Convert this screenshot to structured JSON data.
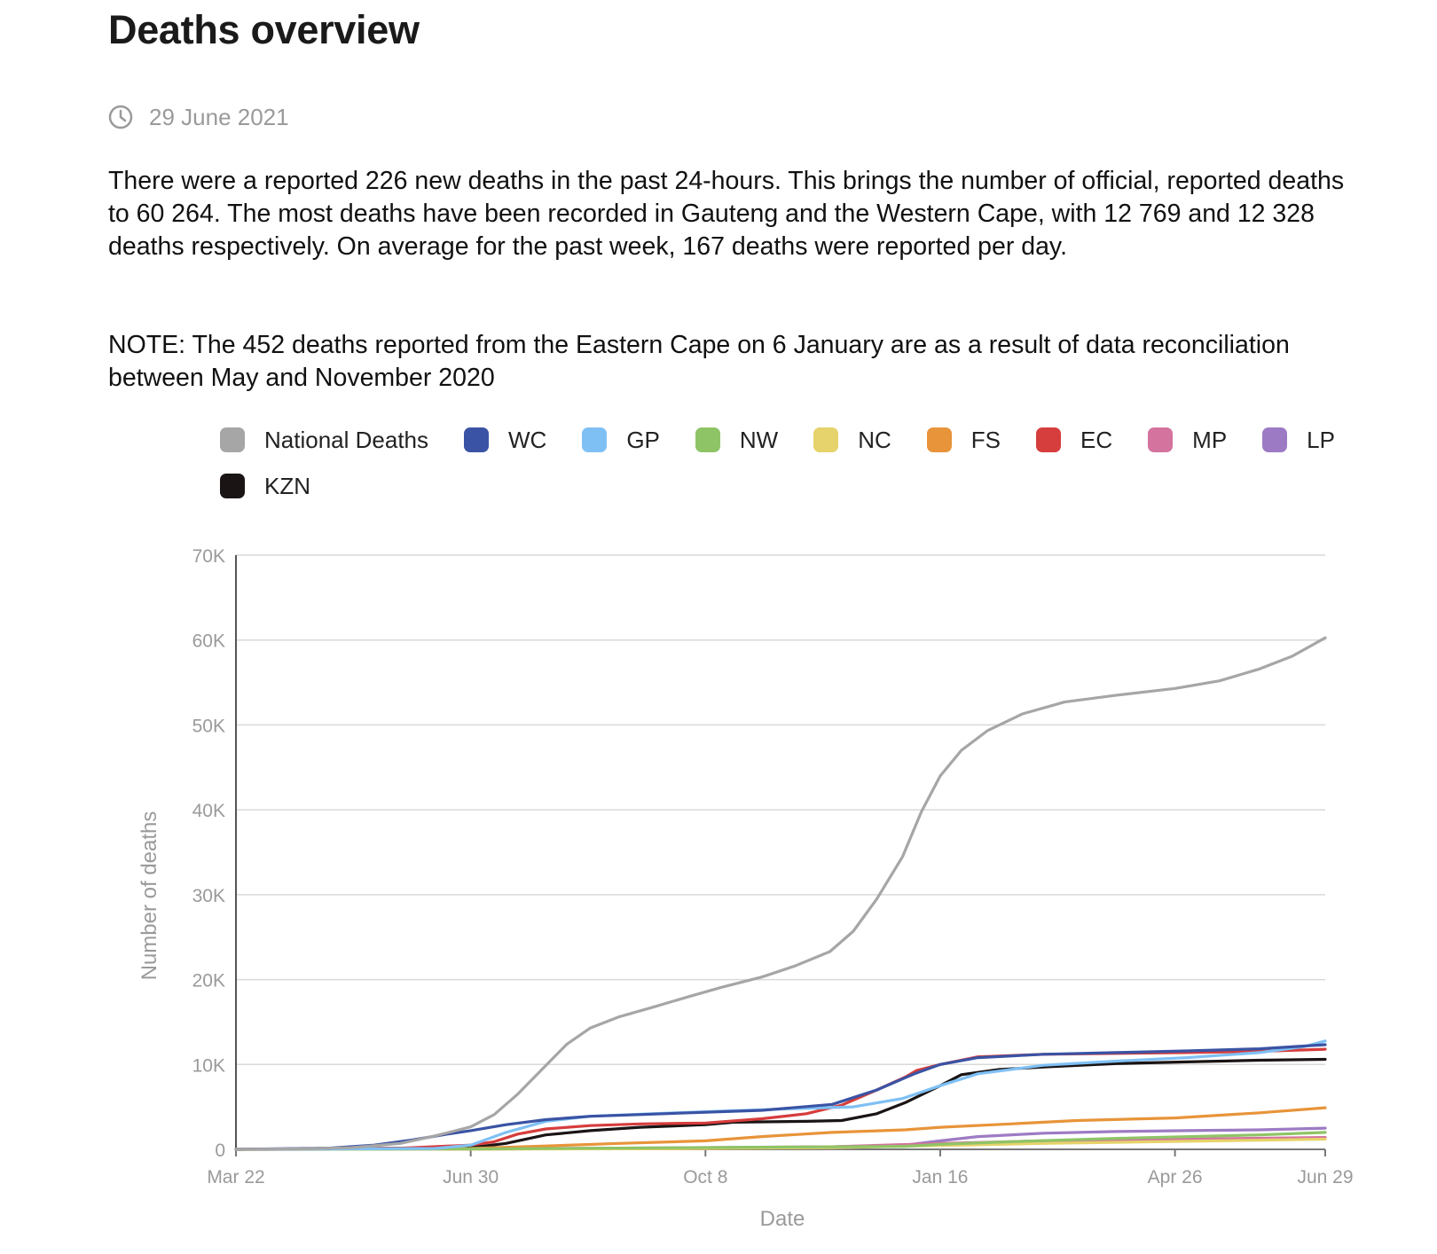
{
  "page": {
    "title": "Deaths overview",
    "date": "29 June 2021",
    "paragraph1": "There were a reported 226 new deaths in the past 24-hours. This brings the number of official, reported deaths to 60 264. The most deaths have been recorded in Gauteng and the Western Cape, with 12 769 and 12 328 deaths respectively. On average for the past week, 167 deaths were reported per day.",
    "paragraph2": "NOTE: The 452 deaths reported from the Eastern Cape on 6 January are as a result of data reconciliation between May and November 2020"
  },
  "icons": {
    "date": "clock-icon"
  },
  "chart_data": {
    "type": "line",
    "xlabel": "Date",
    "ylabel": "Number of deaths",
    "ylim": [
      0,
      70000
    ],
    "y_ticks": [
      0,
      10000,
      20000,
      30000,
      40000,
      50000,
      60000,
      70000
    ],
    "y_tick_labels": [
      "0",
      "10K",
      "20K",
      "30K",
      "40K",
      "50K",
      "60K",
      "70K"
    ],
    "x_tick_labels": [
      "Mar 22",
      "Jun 30",
      "Oct 8",
      "Jan 16",
      "Apr 26",
      "Jun 29"
    ],
    "x_tick_dates": [
      "2020-03-22",
      "2020-06-30",
      "2020-10-08",
      "2021-01-16",
      "2021-04-26",
      "2021-06-29"
    ],
    "xlim": [
      "2020-03-22",
      "2021-06-29"
    ],
    "grid": true,
    "legend_position": "top",
    "series": [
      {
        "name": "National Deaths",
        "color": "#a6a6a6",
        "points": [
          [
            "2020-03-22",
            0
          ],
          [
            "2020-04-20",
            60
          ],
          [
            "2020-05-10",
            200
          ],
          [
            "2020-05-31",
            700
          ],
          [
            "2020-06-15",
            1600
          ],
          [
            "2020-06-30",
            2650
          ],
          [
            "2020-07-10",
            4100
          ],
          [
            "2020-07-20",
            6500
          ],
          [
            "2020-07-31",
            9600
          ],
          [
            "2020-08-10",
            12400
          ],
          [
            "2020-08-20",
            14300
          ],
          [
            "2020-09-01",
            15600
          ],
          [
            "2020-09-15",
            16700
          ],
          [
            "2020-10-01",
            18000
          ],
          [
            "2020-10-15",
            19100
          ],
          [
            "2020-11-01",
            20300
          ],
          [
            "2020-11-15",
            21600
          ],
          [
            "2020-11-30",
            23300
          ],
          [
            "2020-12-10",
            25700
          ],
          [
            "2020-12-20",
            29500
          ],
          [
            "2020-12-31",
            34500
          ],
          [
            "2021-01-08",
            39800
          ],
          [
            "2021-01-16",
            44000
          ],
          [
            "2021-01-25",
            47000
          ],
          [
            "2021-02-05",
            49300
          ],
          [
            "2021-02-20",
            51300
          ],
          [
            "2021-03-10",
            52700
          ],
          [
            "2021-04-01",
            53500
          ],
          [
            "2021-04-26",
            54300
          ],
          [
            "2021-05-15",
            55200
          ],
          [
            "2021-06-01",
            56600
          ],
          [
            "2021-06-15",
            58100
          ],
          [
            "2021-06-29",
            60264
          ]
        ]
      },
      {
        "name": "WC",
        "color": "#3a53a4",
        "points": [
          [
            "2020-03-22",
            0
          ],
          [
            "2020-05-01",
            150
          ],
          [
            "2020-05-20",
            500
          ],
          [
            "2020-06-05",
            1100
          ],
          [
            "2020-06-20",
            1800
          ],
          [
            "2020-06-30",
            2200
          ],
          [
            "2020-07-15",
            2900
          ],
          [
            "2020-08-01",
            3500
          ],
          [
            "2020-08-20",
            3900
          ],
          [
            "2020-09-10",
            4100
          ],
          [
            "2020-10-01",
            4300
          ],
          [
            "2020-11-01",
            4600
          ],
          [
            "2020-12-01",
            5300
          ],
          [
            "2020-12-20",
            7000
          ],
          [
            "2021-01-05",
            8900
          ],
          [
            "2021-01-16",
            10000
          ],
          [
            "2021-02-01",
            10800
          ],
          [
            "2021-03-01",
            11200
          ],
          [
            "2021-04-01",
            11400
          ],
          [
            "2021-05-01",
            11600
          ],
          [
            "2021-06-01",
            11850
          ],
          [
            "2021-06-29",
            12328
          ]
        ]
      },
      {
        "name": "GP",
        "color": "#7fc0f4",
        "points": [
          [
            "2020-03-22",
            0
          ],
          [
            "2020-06-15",
            100
          ],
          [
            "2020-06-30",
            500
          ],
          [
            "2020-07-15",
            2000
          ],
          [
            "2020-08-01",
            3300
          ],
          [
            "2020-08-20",
            3900
          ],
          [
            "2020-09-15",
            4200
          ],
          [
            "2020-10-15",
            4500
          ],
          [
            "2020-11-15",
            4800
          ],
          [
            "2020-12-10",
            5000
          ],
          [
            "2020-12-31",
            6000
          ],
          [
            "2021-01-16",
            7500
          ],
          [
            "2021-02-01",
            8900
          ],
          [
            "2021-03-01",
            9900
          ],
          [
            "2021-04-01",
            10400
          ],
          [
            "2021-05-01",
            10800
          ],
          [
            "2021-06-01",
            11400
          ],
          [
            "2021-06-20",
            12100
          ],
          [
            "2021-06-29",
            12769
          ]
        ]
      },
      {
        "name": "NW",
        "color": "#8fc466",
        "points": [
          [
            "2020-03-22",
            0
          ],
          [
            "2020-07-01",
            50
          ],
          [
            "2020-09-01",
            150
          ],
          [
            "2020-11-01",
            250
          ],
          [
            "2021-01-01",
            350
          ],
          [
            "2021-01-16",
            600
          ],
          [
            "2021-02-15",
            900
          ],
          [
            "2021-04-01",
            1300
          ],
          [
            "2021-06-01",
            1700
          ],
          [
            "2021-06-29",
            2000
          ]
        ]
      },
      {
        "name": "NC",
        "color": "#e6d36b",
        "points": [
          [
            "2020-03-22",
            0
          ],
          [
            "2020-07-01",
            20
          ],
          [
            "2020-10-01",
            80
          ],
          [
            "2020-12-01",
            200
          ],
          [
            "2021-01-16",
            450
          ],
          [
            "2021-03-01",
            700
          ],
          [
            "2021-05-01",
            950
          ],
          [
            "2021-06-29",
            1200
          ]
        ]
      },
      {
        "name": "FS",
        "color": "#e8943a",
        "points": [
          [
            "2020-03-22",
            0
          ],
          [
            "2020-06-30",
            100
          ],
          [
            "2020-08-01",
            400
          ],
          [
            "2020-09-01",
            700
          ],
          [
            "2020-10-08",
            1000
          ],
          [
            "2020-11-01",
            1500
          ],
          [
            "2020-12-01",
            2000
          ],
          [
            "2021-01-01",
            2300
          ],
          [
            "2021-01-16",
            2600
          ],
          [
            "2021-02-15",
            3000
          ],
          [
            "2021-03-15",
            3400
          ],
          [
            "2021-04-26",
            3700
          ],
          [
            "2021-06-01",
            4300
          ],
          [
            "2021-06-29",
            4900
          ]
        ]
      },
      {
        "name": "EC",
        "color": "#d63d3d",
        "points": [
          [
            "2020-03-22",
            0
          ],
          [
            "2020-06-01",
            150
          ],
          [
            "2020-06-30",
            500
          ],
          [
            "2020-07-10",
            900
          ],
          [
            "2020-07-20",
            1800
          ],
          [
            "2020-08-01",
            2400
          ],
          [
            "2020-08-20",
            2800
          ],
          [
            "2020-09-10",
            3000
          ],
          [
            "2020-10-08",
            3100
          ],
          [
            "2020-11-01",
            3600
          ],
          [
            "2020-11-20",
            4200
          ],
          [
            "2020-12-05",
            5200
          ],
          [
            "2020-12-20",
            7000
          ],
          [
            "2021-01-01",
            8500
          ],
          [
            "2021-01-06",
            9300
          ],
          [
            "2021-01-16",
            10000
          ],
          [
            "2021-02-01",
            10900
          ],
          [
            "2021-03-01",
            11200
          ],
          [
            "2021-04-01",
            11300
          ],
          [
            "2021-05-01",
            11400
          ],
          [
            "2021-06-01",
            11550
          ],
          [
            "2021-06-29",
            11800
          ]
        ]
      },
      {
        "name": "MP",
        "color": "#d4739e",
        "points": [
          [
            "2020-03-22",
            0
          ],
          [
            "2020-07-01",
            30
          ],
          [
            "2020-10-01",
            150
          ],
          [
            "2020-12-01",
            300
          ],
          [
            "2021-01-16",
            700
          ],
          [
            "2021-03-01",
            1000
          ],
          [
            "2021-05-01",
            1200
          ],
          [
            "2021-06-29",
            1400
          ]
        ]
      },
      {
        "name": "LP",
        "color": "#9d7bc4",
        "points": [
          [
            "2020-03-22",
            0
          ],
          [
            "2020-07-01",
            30
          ],
          [
            "2020-10-01",
            200
          ],
          [
            "2020-12-01",
            300
          ],
          [
            "2021-01-01",
            500
          ],
          [
            "2021-01-16",
            1000
          ],
          [
            "2021-02-01",
            1500
          ],
          [
            "2021-03-01",
            1900
          ],
          [
            "2021-04-01",
            2100
          ],
          [
            "2021-05-01",
            2200
          ],
          [
            "2021-06-01",
            2300
          ],
          [
            "2021-06-29",
            2500
          ]
        ]
      },
      {
        "name": "KZN",
        "color": "#1a1414",
        "points": [
          [
            "2020-03-22",
            0
          ],
          [
            "2020-06-30",
            200
          ],
          [
            "2020-07-15",
            700
          ],
          [
            "2020-08-01",
            1700
          ],
          [
            "2020-08-20",
            2200
          ],
          [
            "2020-09-10",
            2600
          ],
          [
            "2020-10-08",
            2900
          ],
          [
            "2020-10-20",
            3200
          ],
          [
            "2020-11-20",
            3300
          ],
          [
            "2020-12-05",
            3400
          ],
          [
            "2020-12-20",
            4200
          ],
          [
            "2021-01-01",
            5500
          ],
          [
            "2021-01-16",
            7500
          ],
          [
            "2021-01-25",
            8800
          ],
          [
            "2021-02-10",
            9400
          ],
          [
            "2021-03-01",
            9700
          ],
          [
            "2021-04-01",
            10100
          ],
          [
            "2021-05-01",
            10300
          ],
          [
            "2021-06-01",
            10500
          ],
          [
            "2021-06-29",
            10600
          ]
        ]
      }
    ]
  }
}
